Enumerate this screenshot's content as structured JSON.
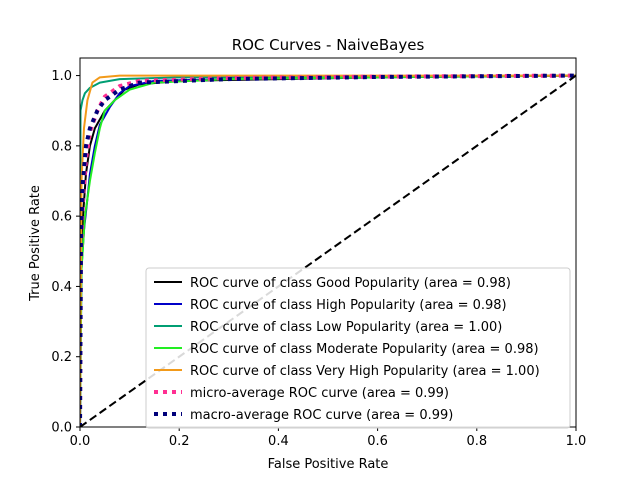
{
  "chart_data": {
    "type": "line",
    "title": "ROC Curves - NaiveBayes",
    "xlabel": "False Positive Rate",
    "ylabel": "True Positive Rate",
    "xlim": [
      0.0,
      1.0
    ],
    "ylim": [
      0.0,
      1.05
    ],
    "xticks": [
      "0.0",
      "0.2",
      "0.4",
      "0.6",
      "0.8",
      "1.0"
    ],
    "yticks": [
      "0.0",
      "0.2",
      "0.4",
      "0.6",
      "0.8",
      "1.0"
    ],
    "grid": false,
    "legend_position": "lower-right",
    "series": [
      {
        "name": "ROC curve of class Good Popularity (area = 0.98)",
        "color": "#000000",
        "style": "solid",
        "points": [
          [
            0,
            0
          ],
          [
            0.002,
            0.4
          ],
          [
            0.006,
            0.6
          ],
          [
            0.012,
            0.72
          ],
          [
            0.02,
            0.8
          ],
          [
            0.03,
            0.85
          ],
          [
            0.05,
            0.9
          ],
          [
            0.07,
            0.93
          ],
          [
            0.09,
            0.96
          ],
          [
            0.12,
            0.975
          ],
          [
            0.2,
            0.985
          ],
          [
            0.4,
            0.99
          ],
          [
            0.6,
            0.995
          ],
          [
            1,
            1
          ]
        ]
      },
      {
        "name": "ROC curve of class High Popularity (area = 0.98)",
        "color": "#0000c8",
        "style": "solid",
        "points": [
          [
            0,
            0
          ],
          [
            0.003,
            0.45
          ],
          [
            0.008,
            0.56
          ],
          [
            0.015,
            0.65
          ],
          [
            0.02,
            0.72
          ],
          [
            0.03,
            0.8
          ],
          [
            0.04,
            0.86
          ],
          [
            0.06,
            0.91
          ],
          [
            0.08,
            0.95
          ],
          [
            0.1,
            0.97
          ],
          [
            0.15,
            0.985
          ],
          [
            0.3,
            0.99
          ],
          [
            0.6,
            0.995
          ],
          [
            1,
            1
          ]
        ]
      },
      {
        "name": "ROC curve of class Low Popularity (area = 1.00)",
        "color": "#009e73",
        "style": "solid",
        "points": [
          [
            0,
            0
          ],
          [
            0.001,
            0.9
          ],
          [
            0.005,
            0.93
          ],
          [
            0.01,
            0.95
          ],
          [
            0.02,
            0.965
          ],
          [
            0.04,
            0.98
          ],
          [
            0.08,
            0.99
          ],
          [
            0.2,
            0.995
          ],
          [
            1,
            1
          ]
        ]
      },
      {
        "name": "ROC curve of class Moderate Popularity (area = 0.98)",
        "color": "#22ee22",
        "style": "solid",
        "points": [
          [
            0,
            0
          ],
          [
            0.003,
            0.45
          ],
          [
            0.01,
            0.6
          ],
          [
            0.02,
            0.7
          ],
          [
            0.03,
            0.78
          ],
          [
            0.04,
            0.85
          ],
          [
            0.05,
            0.9
          ],
          [
            0.07,
            0.93
          ],
          [
            0.1,
            0.96
          ],
          [
            0.15,
            0.98
          ],
          [
            0.3,
            0.99
          ],
          [
            0.6,
            0.995
          ],
          [
            1,
            1
          ]
        ]
      },
      {
        "name": "ROC curve of class Very High Popularity (area = 1.00)",
        "color": "#f29a1a",
        "style": "solid",
        "points": [
          [
            0,
            0
          ],
          [
            0.003,
            0.7
          ],
          [
            0.008,
            0.85
          ],
          [
            0.015,
            0.93
          ],
          [
            0.025,
            0.98
          ],
          [
            0.04,
            0.995
          ],
          [
            0.08,
            1.0
          ],
          [
            1,
            1
          ]
        ]
      },
      {
        "name": "micro-average ROC curve (area = 0.99)",
        "color": "#ff2f92",
        "style": "dotted",
        "points": [
          [
            0,
            0
          ],
          [
            0.002,
            0.5
          ],
          [
            0.006,
            0.65
          ],
          [
            0.012,
            0.76
          ],
          [
            0.02,
            0.84
          ],
          [
            0.035,
            0.9
          ],
          [
            0.05,
            0.94
          ],
          [
            0.08,
            0.97
          ],
          [
            0.12,
            0.985
          ],
          [
            0.3,
            0.993
          ],
          [
            0.6,
            0.997
          ],
          [
            1,
            1
          ]
        ]
      },
      {
        "name": "macro-average ROC curve (area = 0.99)",
        "color": "#00007a",
        "style": "dotted",
        "points": [
          [
            0,
            0
          ],
          [
            0.002,
            0.55
          ],
          [
            0.006,
            0.7
          ],
          [
            0.012,
            0.8
          ],
          [
            0.02,
            0.85
          ],
          [
            0.035,
            0.9
          ],
          [
            0.05,
            0.93
          ],
          [
            0.08,
            0.96
          ],
          [
            0.12,
            0.98
          ],
          [
            0.3,
            0.99
          ],
          [
            0.6,
            0.996
          ],
          [
            1,
            1
          ]
        ]
      },
      {
        "name": "",
        "color": "#000000",
        "style": "dashed",
        "points": [
          [
            0,
            0
          ],
          [
            1,
            1
          ]
        ]
      }
    ]
  }
}
